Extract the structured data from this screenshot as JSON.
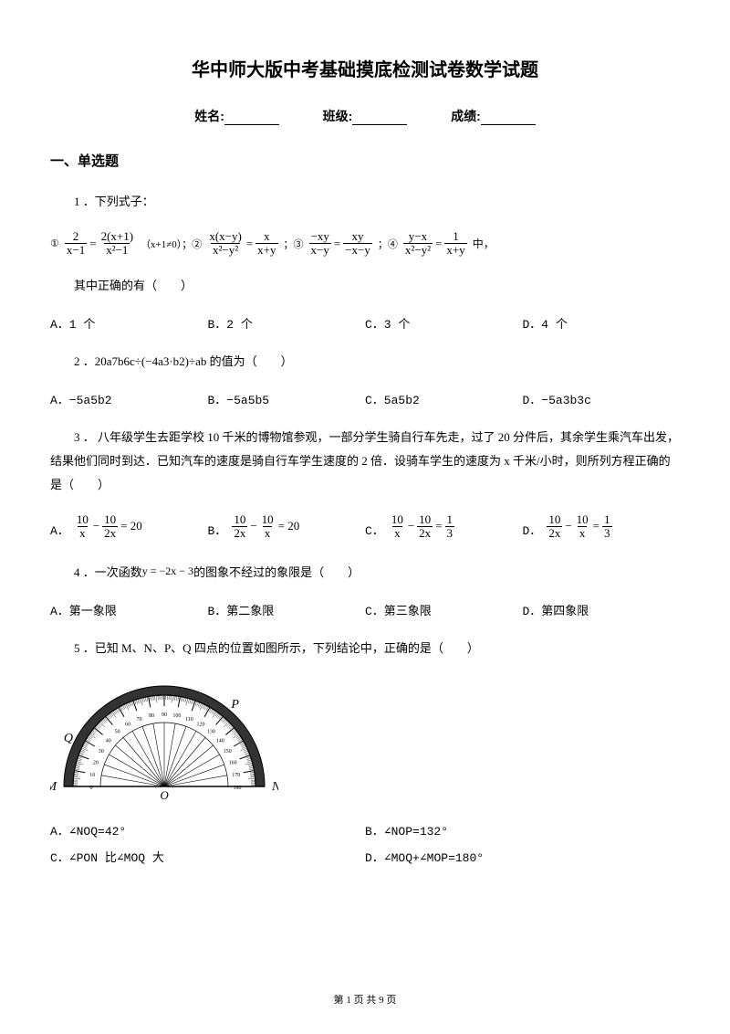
{
  "title": "华中师大版中考基础摸底检测试卷数学试题",
  "info": {
    "name_label": "姓名:",
    "class_label": "班级:",
    "score_label": "成绩:"
  },
  "section1": "一、单选题",
  "q1": {
    "stem": "1 ．下列式子：",
    "tail": "中，",
    "after": "其中正确的有（　　）",
    "opts": {
      "A": "A．1 个",
      "B": "B．2 个",
      "C": "C．3 个",
      "D": "D．4 个"
    },
    "c1": "①",
    "c2": "（x+1≠0）；②",
    "c3": "；③",
    "c4": "；④",
    "f1n": "2",
    "f1d": "x−1",
    "f2n": "2(x+1)",
    "f2d": "x²−1",
    "f3n": "x(x−y)",
    "f3d": "x²−y²",
    "f4n": "x",
    "f4d": "x+y",
    "f5n": "−xy",
    "f5d": "x−y",
    "f6n": "xy",
    "f6d": "−x−y",
    "f7n": "y−x",
    "f7d": "x²−y²",
    "f8n": "1",
    "f8d": "x+y"
  },
  "q2": {
    "stem": "2 ．20a7b6c÷(−4a3·b2)÷ab 的值为（　　）",
    "opts": {
      "A": "A．−5a5b2",
      "B": "B．−5a5b5",
      "C": "C．5a5b2",
      "D": "D．−5a3b3c"
    }
  },
  "q3": {
    "stem": "3 ． 八年级学生去距学校 10 千米的博物馆参观，一部分学生骑自行车先走，过了 20 分件后，其余学生乘汽车出发，结果他们同时到达．已知汽车的速度是骑自行车学生速度的 2 倍．设骑车学生的速度为 x 千米/小时，则所列方程正确的是（　　）",
    "A": "A．",
    "B": "B．",
    "C": "C．",
    "D": "D．",
    "fa1n": "10",
    "fa1d": "x",
    "fa2n": "10",
    "fa2d": "2x",
    "ra": "= 20",
    "fb1n": "10",
    "fb1d": "2x",
    "fb2n": "10",
    "fb2d": "x",
    "rb": "= 20",
    "fc1n": "10",
    "fc1d": "x",
    "fc2n": "10",
    "fc2d": "2x",
    "fc3n": "1",
    "fc3d": "3",
    "fd1n": "10",
    "fd1d": "2x",
    "fd2n": "10",
    "fd2d": "x",
    "fd3n": "1",
    "fd3d": "3"
  },
  "q4": {
    "stem_a": "4 ．一次函数",
    "fn": "y = −2x − 3",
    "stem_b": "的图象不经过的象限是（　　）",
    "opts": {
      "A": "A．第一象限",
      "B": "B．第二象限",
      "C": "C．第三象限",
      "D": "D．第四象限"
    }
  },
  "q5": {
    "stem": "5 ．已知 M、N、P、Q 四点的位置如图所示，下列结论中，正确的是（　　）",
    "opts": {
      "A": "A．∠NOQ=42°",
      "B": "B．∠NOP=132°",
      "C": "C．∠PON 比∠MOQ 大",
      "D": "D．∠MOQ+∠MOP=180°"
    },
    "labels": {
      "M": "M",
      "N": "N",
      "O": "O",
      "P": "P",
      "Q": "Q"
    }
  },
  "footer": "第 1 页 共 9 页"
}
